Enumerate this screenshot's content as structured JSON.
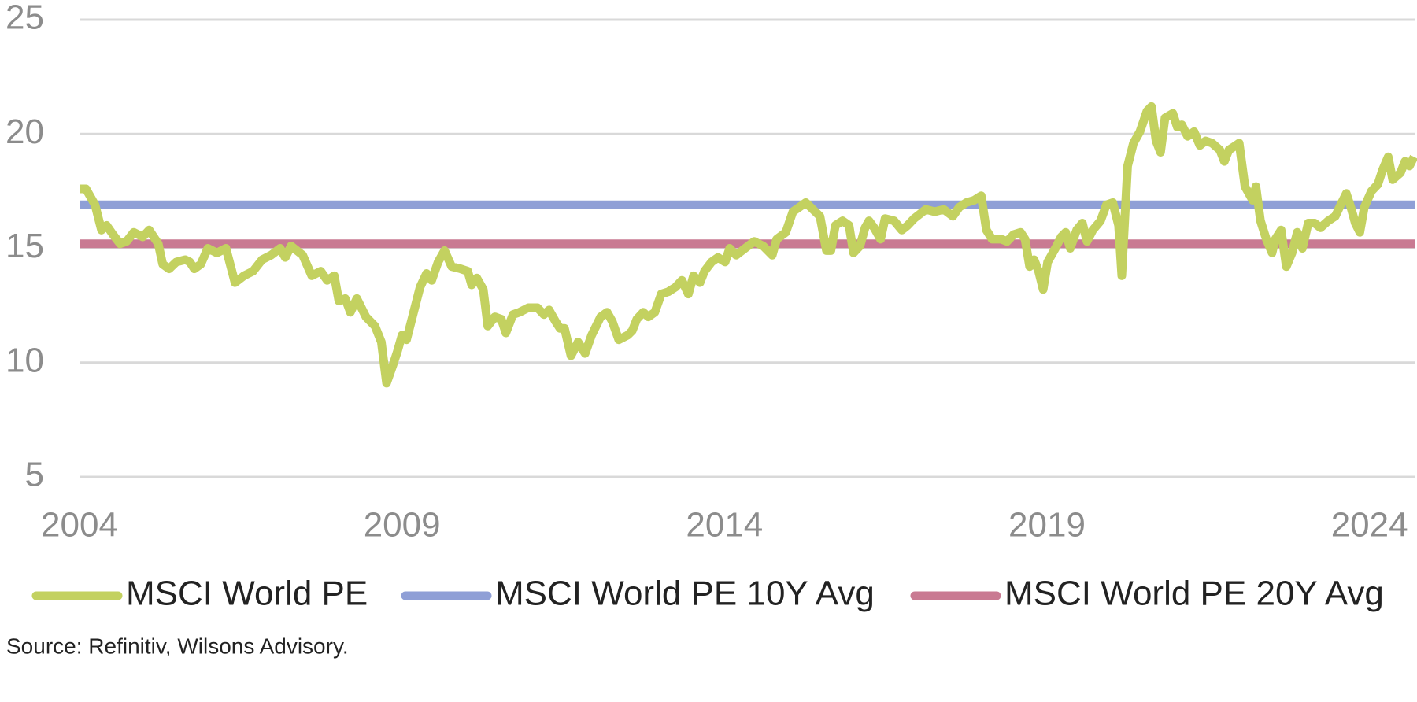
{
  "chart_data": {
    "type": "line",
    "x": [
      2004.0,
      2004.1,
      2004.24,
      2004.34,
      2004.42,
      2004.52,
      2004.63,
      2004.73,
      2004.84,
      2004.98,
      2005.08,
      2005.22,
      2005.29,
      2005.39,
      2005.5,
      2005.64,
      2005.71,
      2005.78,
      2005.88,
      2005.99,
      2006.13,
      2006.27,
      2006.41,
      2006.55,
      2006.69,
      2006.83,
      2006.97,
      2007.11,
      2007.19,
      2007.28,
      2007.46,
      2007.6,
      2007.74,
      2007.84,
      2007.95,
      2008.02,
      2008.12,
      2008.2,
      2008.3,
      2008.44,
      2008.58,
      2008.68,
      2008.76,
      2008.86,
      2008.93,
      2009.0,
      2009.07,
      2009.18,
      2009.28,
      2009.38,
      2009.46,
      2009.56,
      2009.66,
      2009.77,
      2009.91,
      2010.02,
      2010.08,
      2010.16,
      2010.26,
      2010.33,
      2010.44,
      2010.54,
      2010.61,
      2010.72,
      2010.82,
      2010.96,
      2011.1,
      2011.2,
      2011.28,
      2011.38,
      2011.45,
      2011.52,
      2011.62,
      2011.73,
      2011.84,
      2011.94,
      2012.08,
      2012.18,
      2012.26,
      2012.36,
      2012.5,
      2012.57,
      2012.64,
      2012.74,
      2012.82,
      2012.92,
      2013.02,
      2013.13,
      2013.24,
      2013.34,
      2013.44,
      2013.52,
      2013.62,
      2013.69,
      2013.8,
      2013.9,
      2014.01,
      2014.08,
      2014.18,
      2014.32,
      2014.46,
      2014.6,
      2014.74,
      2014.81,
      2014.95,
      2015.06,
      2015.16,
      2015.26,
      2015.37,
      2015.48,
      2015.58,
      2015.65,
      2015.72,
      2015.83,
      2015.93,
      2016.0,
      2016.1,
      2016.18,
      2016.24,
      2016.32,
      2016.42,
      2016.49,
      2016.63,
      2016.75,
      2016.84,
      2016.94,
      2017.03,
      2017.12,
      2017.26,
      2017.4,
      2017.54,
      2017.64,
      2017.75,
      2017.87,
      2017.98,
      2018.06,
      2018.15,
      2018.29,
      2018.38,
      2018.48,
      2018.59,
      2018.66,
      2018.73,
      2018.8,
      2018.87,
      2018.94,
      2019.01,
      2019.13,
      2019.22,
      2019.29,
      2019.36,
      2019.46,
      2019.55,
      2019.62,
      2019.71,
      2019.83,
      2019.92,
      2020.02,
      2020.11,
      2020.16,
      2020.25,
      2020.34,
      2020.44,
      2020.55,
      2020.62,
      2020.69,
      2020.76,
      2020.83,
      2020.95,
      2021.02,
      2021.09,
      2021.18,
      2021.28,
      2021.37,
      2021.46,
      2021.56,
      2021.68,
      2021.75,
      2021.82,
      2021.93,
      2021.98,
      2022.07,
      2022.19,
      2022.24,
      2022.31,
      2022.4,
      2022.49,
      2022.54,
      2022.63,
      2022.71,
      2022.8,
      2022.88,
      2022.96,
      2023.05,
      2023.15,
      2023.24,
      2023.36,
      2023.47,
      2023.57,
      2023.64,
      2023.71,
      2023.78,
      2023.85,
      2023.92,
      2024.03,
      2024.13,
      2024.2,
      2024.29,
      2024.36,
      2024.48,
      2024.55,
      2024.62,
      2024.69
    ],
    "series": [
      {
        "name": "MSCI World PE",
        "color": "#c3d160",
        "values": [
          17.6,
          17.6,
          16.9,
          15.8,
          16.0,
          15.6,
          15.2,
          15.3,
          15.7,
          15.5,
          15.8,
          15.2,
          14.3,
          14.1,
          14.4,
          14.5,
          14.4,
          14.1,
          14.3,
          15.0,
          14.8,
          15.0,
          13.5,
          13.8,
          14.0,
          14.5,
          14.7,
          15.0,
          14.6,
          15.1,
          14.7,
          13.8,
          14.0,
          13.6,
          13.8,
          12.7,
          12.8,
          12.2,
          12.8,
          12.0,
          11.6,
          10.9,
          9.1,
          9.9,
          10.5,
          11.2,
          11.0,
          12.2,
          13.3,
          13.9,
          13.6,
          14.4,
          14.9,
          14.2,
          14.1,
          14.0,
          13.4,
          13.7,
          13.2,
          11.6,
          12.0,
          11.9,
          11.3,
          12.1,
          12.2,
          12.4,
          12.4,
          12.1,
          12.3,
          11.8,
          11.5,
          11.5,
          10.3,
          10.9,
          10.4,
          11.2,
          12.0,
          12.2,
          11.8,
          11.0,
          11.2,
          11.4,
          11.9,
          12.2,
          12.0,
          12.2,
          13.0,
          13.1,
          13.3,
          13.6,
          13.0,
          13.8,
          13.5,
          14.0,
          14.4,
          14.6,
          14.4,
          15.0,
          14.7,
          15.0,
          15.3,
          15.1,
          14.7,
          15.4,
          15.7,
          16.6,
          16.8,
          17.0,
          16.7,
          16.4,
          14.9,
          14.9,
          16.0,
          16.2,
          16.0,
          14.8,
          15.1,
          15.9,
          16.2,
          15.9,
          15.4,
          16.3,
          16.2,
          15.8,
          16.0,
          16.3,
          16.5,
          16.7,
          16.6,
          16.7,
          16.4,
          16.8,
          17.0,
          17.1,
          17.3,
          15.8,
          15.4,
          15.4,
          15.3,
          15.6,
          15.7,
          15.4,
          14.2,
          14.5,
          14.0,
          13.2,
          14.4,
          15.0,
          15.5,
          15.7,
          15.0,
          15.8,
          16.1,
          15.3,
          15.8,
          16.2,
          16.9,
          17.0,
          16.0,
          13.8,
          18.6,
          19.6,
          20.1,
          21.0,
          21.2,
          19.7,
          19.2,
          20.7,
          20.9,
          20.3,
          20.4,
          19.9,
          20.1,
          19.5,
          19.7,
          19.6,
          19.3,
          18.8,
          19.3,
          19.5,
          19.6,
          17.7,
          17.1,
          17.7,
          16.2,
          15.4,
          14.8,
          15.4,
          15.8,
          14.2,
          14.8,
          15.7,
          15.0,
          16.1,
          16.1,
          15.9,
          16.2,
          16.4,
          17.0,
          17.4,
          16.8,
          16.1,
          15.7,
          16.8,
          17.5,
          17.8,
          18.4,
          19.0,
          18.0,
          18.3,
          18.8,
          18.6,
          19.0
        ]
      },
      {
        "name": "MSCI World PE 10Y Avg",
        "color": "#8f9fd6",
        "value": 16.9
      },
      {
        "name": "MSCI World PE 20Y Avg",
        "color": "#c97a92",
        "value": 15.2
      }
    ],
    "xlim": [
      2004,
      2024.7
    ],
    "xticks": [
      2004,
      2009,
      2014,
      2019,
      2024
    ],
    "ylim": [
      5,
      25
    ],
    "yticks": [
      5,
      10,
      15,
      20,
      25
    ],
    "grid": true,
    "source": "Source: Refinitiv, Wilsons Advisory."
  }
}
